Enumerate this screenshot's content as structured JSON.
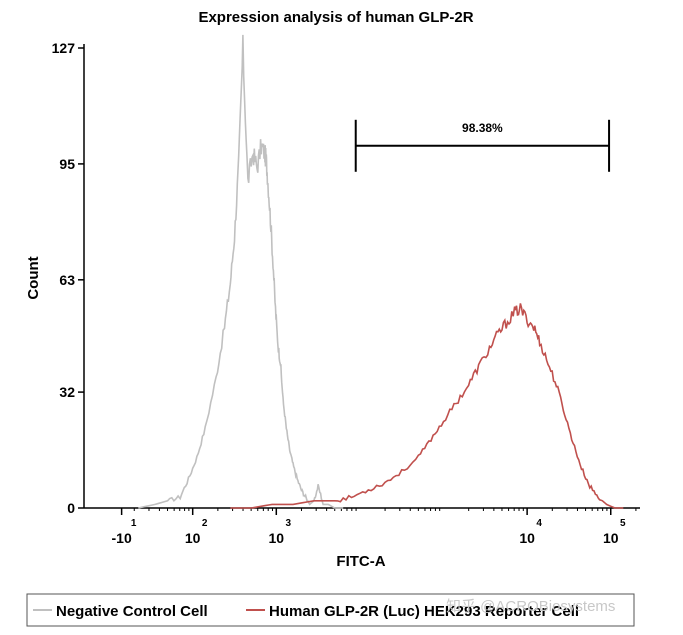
{
  "chart_data": {
    "type": "histogram",
    "title": "Expression analysis of human GLP-2R",
    "xlabel": "FITC-A",
    "ylabel": "Count",
    "yticks": [
      0,
      32,
      63,
      95,
      127
    ],
    "ylim": [
      0,
      127
    ],
    "xlim_log": [
      -1.3,
      5.35
    ],
    "xticks": [
      {
        "base": "-10",
        "exp": "1",
        "pos": -0.85
      },
      {
        "base": "10",
        "exp": "2",
        "pos": 0.0
      },
      {
        "base": "10",
        "exp": "3",
        "pos": 1.0
      },
      {
        "base": "10",
        "exp": "4",
        "pos": 4.0
      },
      {
        "base": "10",
        "exp": "5",
        "pos": 5.0
      }
    ],
    "gate": {
      "label": "98.38%",
      "x_start": 1.95,
      "x_end": 4.98,
      "y": 100
    },
    "series": [
      {
        "name": "Negative Control Cell",
        "color": "#c0c0c0",
        "x": [
          -0.65,
          -0.45,
          -0.3,
          -0.15,
          -0.05,
          0.05,
          0.15,
          0.28,
          0.38,
          0.45,
          0.5,
          0.55,
          0.6,
          0.66,
          0.72,
          0.77,
          0.82,
          0.86,
          0.88,
          0.9,
          0.93,
          0.96,
          0.99,
          1.02,
          1.05,
          1.08,
          1.12,
          1.16,
          1.2,
          1.25,
          1.3,
          1.35,
          1.4,
          1.45,
          1.5,
          1.56,
          1.62,
          1.7,
          1.8
        ],
        "y": [
          0,
          1,
          2,
          3,
          8,
          14,
          22,
          36,
          50,
          62,
          75,
          95,
          127,
          90,
          98,
          94,
          100,
          98,
          96,
          90,
          80,
          68,
          55,
          45,
          40,
          30,
          22,
          16,
          12,
          8,
          5,
          3,
          1,
          2,
          6,
          1,
          1,
          0,
          0
        ]
      },
      {
        "name": "Human GLP-2R (Luc) HEK293 Reporter Cell",
        "color": "#c0504d",
        "x": [
          0.45,
          0.7,
          0.95,
          1.2,
          1.45,
          1.7,
          1.9,
          2.1,
          2.3,
          2.5,
          2.7,
          2.85,
          3.0,
          3.15,
          3.3,
          3.42,
          3.55,
          3.65,
          3.75,
          3.85,
          3.92,
          4.0,
          4.08,
          4.15,
          4.25,
          4.35,
          4.45,
          4.55,
          4.65,
          4.75,
          4.85,
          4.95,
          5.05,
          5.15
        ],
        "y": [
          0,
          0,
          1,
          1,
          2,
          2,
          3,
          5,
          7,
          10,
          14,
          19,
          24,
          29,
          34,
          39,
          44,
          48,
          51,
          54,
          55,
          52,
          50,
          46,
          40,
          34,
          26,
          18,
          11,
          6,
          3,
          1,
          0,
          0
        ]
      }
    ],
    "legend": {
      "items": [
        "Negative Control Cell",
        "Human GLP-2R (Luc) HEK293 Reporter Cell"
      ],
      "placement": "bottom"
    }
  },
  "watermark": "知乎 @ACROBiosystems"
}
